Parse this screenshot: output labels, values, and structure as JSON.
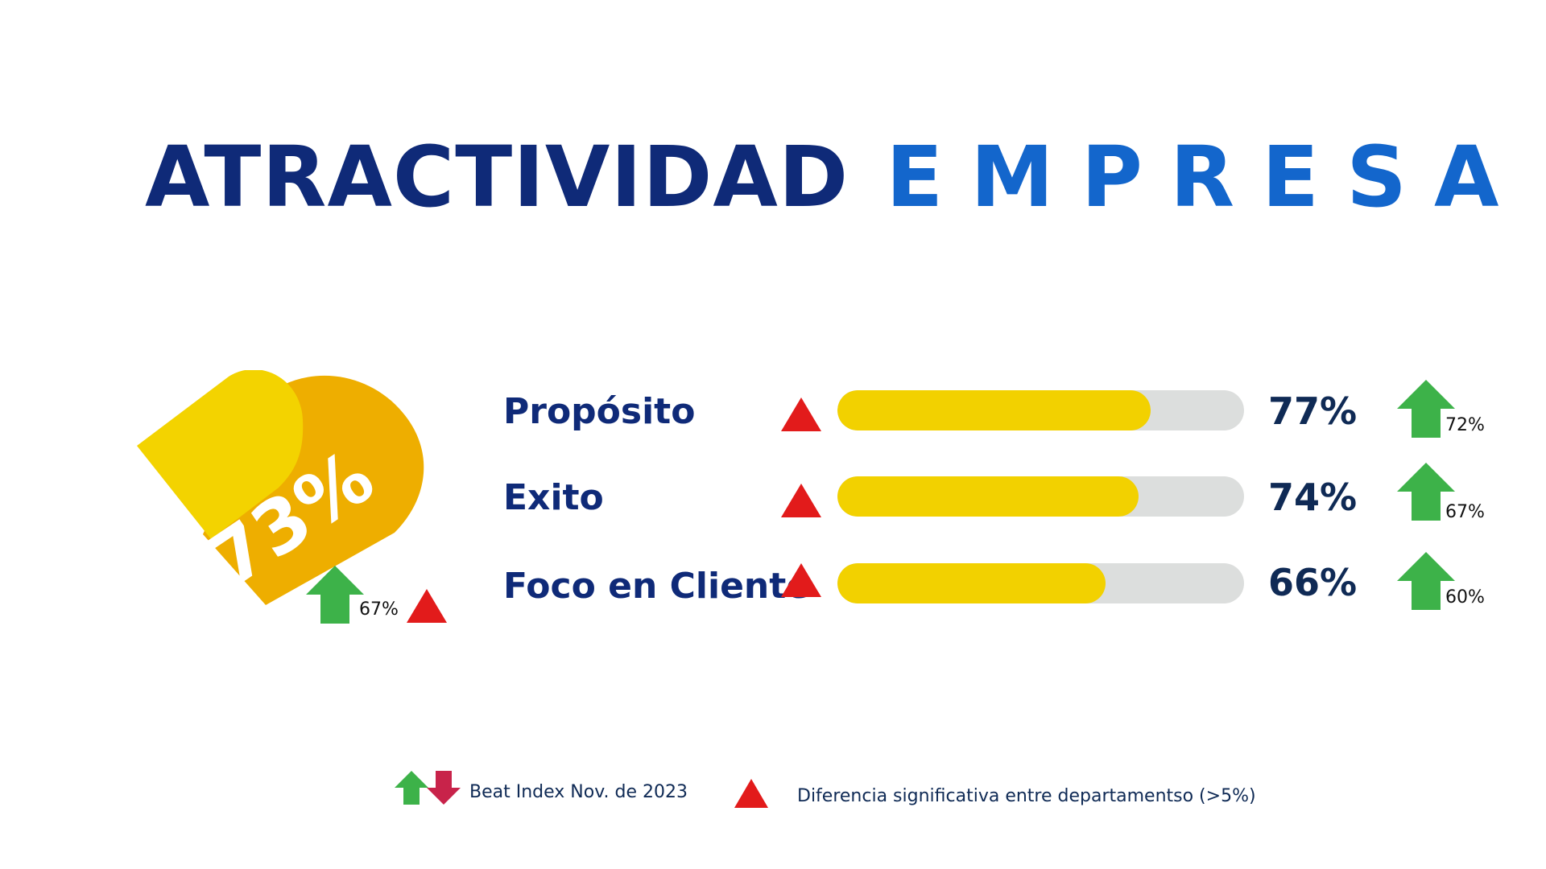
{
  "title": {
    "part1": "ATRACTIVIDAD",
    "part2": "EMPRESA"
  },
  "colors": {
    "navy": "#0f2a78",
    "blue": "#1366cc",
    "bar_fill": "#f2d100",
    "bar_track": "#dcdedd",
    "up_arrow": "#3db249",
    "down_arrow": "#c8234a",
    "significance": "#e21b1b"
  },
  "overall": {
    "value_label": "73%",
    "value": 73,
    "benchmark_label": "67%",
    "trend": "up",
    "significant": true
  },
  "chart_data": {
    "type": "bar",
    "orientation": "horizontal",
    "title": "ATRACTIVIDAD EMPRESA",
    "categories": [
      "Propósito",
      "Exito",
      "Foco en Cliente"
    ],
    "values": [
      77,
      74,
      66
    ],
    "value_labels": [
      "77%",
      "74%",
      "66%"
    ],
    "benchmark": [
      72,
      67,
      60
    ],
    "benchmark_labels": [
      "72%",
      "67%",
      "60%"
    ],
    "trend": [
      "up",
      "up",
      "up"
    ],
    "significant": [
      true,
      true,
      true
    ],
    "ylim": [
      0,
      100
    ]
  },
  "legend": {
    "beat_index": "Beat Index Nov. de 2023",
    "significance": "Diferencia significativa entre departamentso (>5%)"
  }
}
